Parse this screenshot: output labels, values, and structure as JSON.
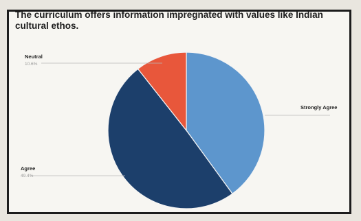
{
  "chart_data": {
    "type": "pie",
    "title": "The curriculum offers information impregnated with values like Indian cultural ethos.",
    "slices": [
      {
        "label": "Strongly Agree",
        "value": 40,
        "color": "#5d96cd",
        "value_text": ""
      },
      {
        "label": "Agree",
        "value": 49.4,
        "color": "#1c3f6b",
        "value_text": "49.4%"
      },
      {
        "label": "Neutral",
        "value": 10.6,
        "color": "#e8573b",
        "value_text": "10.6%"
      }
    ]
  }
}
